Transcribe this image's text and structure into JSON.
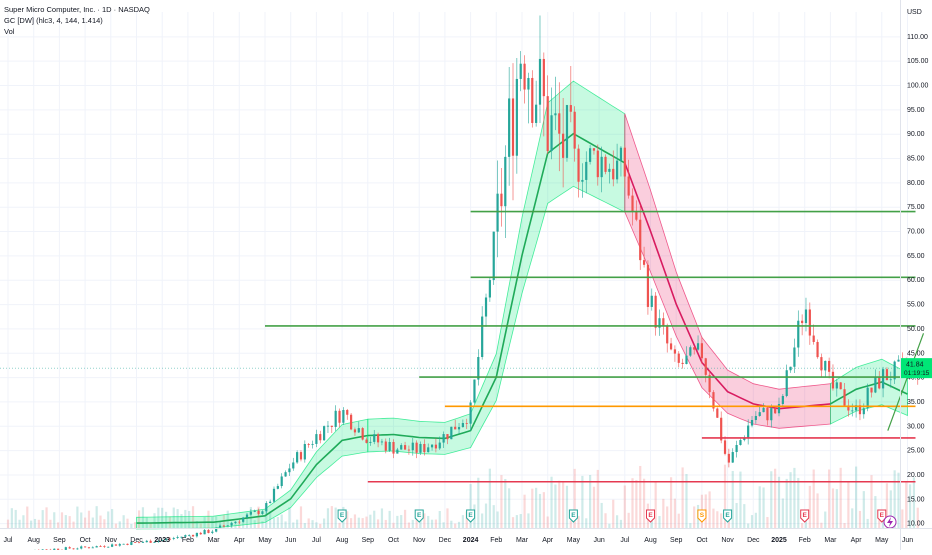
{
  "header": {
    "symbol_line": "Super Micro Computer, Inc. · 1D · NASDAQ",
    "indicator_line": "GC [DW] (hlc3, 4, 144, 1.414)",
    "vol_label": "Vol"
  },
  "price_axis": {
    "currency": "USD",
    "ticks": [
      "110.00",
      "105.00",
      "100.00",
      "95.00",
      "90.00",
      "85.00",
      "80.00",
      "75.00",
      "70.00",
      "65.00",
      "60.00",
      "55.00",
      "50.00",
      "45.00",
      "40.00",
      "35.00",
      "30.00",
      "25.00",
      "20.00",
      "15.00",
      "10.00"
    ],
    "current_price": "41.84",
    "countdown": "01:19:15"
  },
  "time_axis": {
    "ticks": [
      "Jul",
      "Aug",
      "Sep",
      "Oct",
      "Nov",
      "Dec",
      "2023",
      "Feb",
      "Mar",
      "Apr",
      "May",
      "Jun",
      "Jul",
      "Aug",
      "Sep",
      "Oct",
      "Nov",
      "Dec",
      "2024",
      "Feb",
      "Mar",
      "Apr",
      "May",
      "Jun",
      "Jul",
      "Aug",
      "Sep",
      "Oct",
      "Nov",
      "Dec",
      "2025",
      "Feb",
      "Mar",
      "Apr",
      "May",
      "Jun"
    ]
  },
  "colors": {
    "up": "#26a69a",
    "down": "#ef5350",
    "band_green": "#00e676",
    "band_red": "#e91e63",
    "hline_green": "#43a047",
    "hline_orange": "#ff9800",
    "hline_red": "#e53950",
    "price_badge": "#00e676"
  },
  "chart_data": {
    "type": "line",
    "ylim": [
      9,
      115
    ],
    "y_scale": "linear",
    "price_path": [
      {
        "x": "2022-07",
        "y": 4.2
      },
      {
        "x": "2022-10",
        "y": 5.0
      },
      {
        "x": "2023-01",
        "y": 6.5
      },
      {
        "x": "2023-03",
        "y": 8.5
      },
      {
        "x": "2023-05",
        "y": 13.0
      },
      {
        "x": "2023-06",
        "y": 22.0
      },
      {
        "x": "2023-07",
        "y": 28.0
      },
      {
        "x": "2023-08",
        "y": 33.0
      },
      {
        "x": "2023-09",
        "y": 27.5
      },
      {
        "x": "2023-10",
        "y": 25.5
      },
      {
        "x": "2023-11",
        "y": 25.0
      },
      {
        "x": "2023-12",
        "y": 28.0
      },
      {
        "x": "2024-01",
        "y": 33.0
      },
      {
        "x": "2024-02",
        "y": 70.0
      },
      {
        "x": "2024-03",
        "y": 110.0
      },
      {
        "x": "2024-04",
        "y": 92.0
      },
      {
        "x": "2024-05",
        "y": 84.0
      },
      {
        "x": "2024-06",
        "y": 85.0
      },
      {
        "x": "2024-07",
        "y": 82.0
      },
      {
        "x": "2024-08",
        "y": 55.0
      },
      {
        "x": "2024-09",
        "y": 42.0
      },
      {
        "x": "2024-10",
        "y": 45.0
      },
      {
        "x": "2024-11",
        "y": 22.0
      },
      {
        "x": "2024-12",
        "y": 32.0
      },
      {
        "x": "2025-01",
        "y": 33.0
      },
      {
        "x": "2025-02",
        "y": 55.0
      },
      {
        "x": "2025-03",
        "y": 38.0
      },
      {
        "x": "2025-04",
        "y": 33.0
      },
      {
        "x": "2025-05",
        "y": 40.0
      },
      {
        "x": "2025-06",
        "y": 41.84
      }
    ],
    "band_center": [
      {
        "x": "2022-12",
        "y": 10.0
      },
      {
        "x": "2023-03",
        "y": 10.2
      },
      {
        "x": "2023-05",
        "y": 11.5
      },
      {
        "x": "2023-06",
        "y": 15.0
      },
      {
        "x": "2023-07",
        "y": 22.0
      },
      {
        "x": "2023-08",
        "y": 27.0
      },
      {
        "x": "2023-09",
        "y": 28.0
      },
      {
        "x": "2023-10",
        "y": 28.2
      },
      {
        "x": "2023-11",
        "y": 27.6
      },
      {
        "x": "2023-12",
        "y": 27.4
      },
      {
        "x": "2024-01",
        "y": 29.0
      },
      {
        "x": "2024-02",
        "y": 40.0
      },
      {
        "x": "2024-03",
        "y": 65.0
      },
      {
        "x": "2024-04",
        "y": 86.0
      },
      {
        "x": "2024-05",
        "y": 90.0
      },
      {
        "x": "2024-06",
        "y": 87.0
      },
      {
        "x": "2024-07",
        "y": 84.0
      },
      {
        "x": "2024-08",
        "y": 70.0
      },
      {
        "x": "2024-09",
        "y": 55.0
      },
      {
        "x": "2024-10",
        "y": 43.0
      },
      {
        "x": "2024-11",
        "y": 37.0
      },
      {
        "x": "2024-12",
        "y": 34.5
      },
      {
        "x": "2025-01",
        "y": 33.5
      },
      {
        "x": "2025-02",
        "y": 34.0
      },
      {
        "x": "2025-03",
        "y": 34.5
      },
      {
        "x": "2025-04",
        "y": 37.5
      },
      {
        "x": "2025-05",
        "y": 39.0
      },
      {
        "x": "2025-06",
        "y": 36.5
      }
    ],
    "band_up_until": "2024-07",
    "horizontal_levels": [
      {
        "price": 74.0,
        "from": "2024-01",
        "to": "2025-06",
        "color": "hline_green"
      },
      {
        "price": 60.5,
        "from": "2024-01",
        "to": "2025-06",
        "color": "hline_green"
      },
      {
        "price": 50.5,
        "from": "2023-05",
        "to": "2025-06",
        "color": "hline_green"
      },
      {
        "price": 40.0,
        "from": "2023-11",
        "to": "2025-06",
        "color": "hline_green"
      },
      {
        "price": 34.0,
        "from": "2023-12",
        "to": "2025-06",
        "color": "hline_orange"
      },
      {
        "price": 27.5,
        "from": "2024-10",
        "to": "2025-06",
        "color": "hline_red"
      },
      {
        "price": 18.5,
        "from": "2023-09",
        "to": "2025-06",
        "color": "hline_red"
      }
    ],
    "markers": [
      {
        "x": "2023-08",
        "label": "E",
        "kind": "earnings-good"
      },
      {
        "x": "2023-11",
        "label": "E",
        "kind": "earnings-good"
      },
      {
        "x": "2024-01",
        "label": "E",
        "kind": "earnings-good"
      },
      {
        "x": "2024-05",
        "label": "E",
        "kind": "earnings-good"
      },
      {
        "x": "2024-08",
        "label": "E",
        "kind": "earnings-bad"
      },
      {
        "x": "2024-10",
        "label": "S",
        "kind": "split"
      },
      {
        "x": "2024-11",
        "label": "E",
        "kind": "earnings-good"
      },
      {
        "x": "2025-02",
        "label": "E",
        "kind": "earnings-bad"
      },
      {
        "x": "2025-05",
        "label": "E",
        "kind": "earnings-bad"
      }
    ]
  }
}
